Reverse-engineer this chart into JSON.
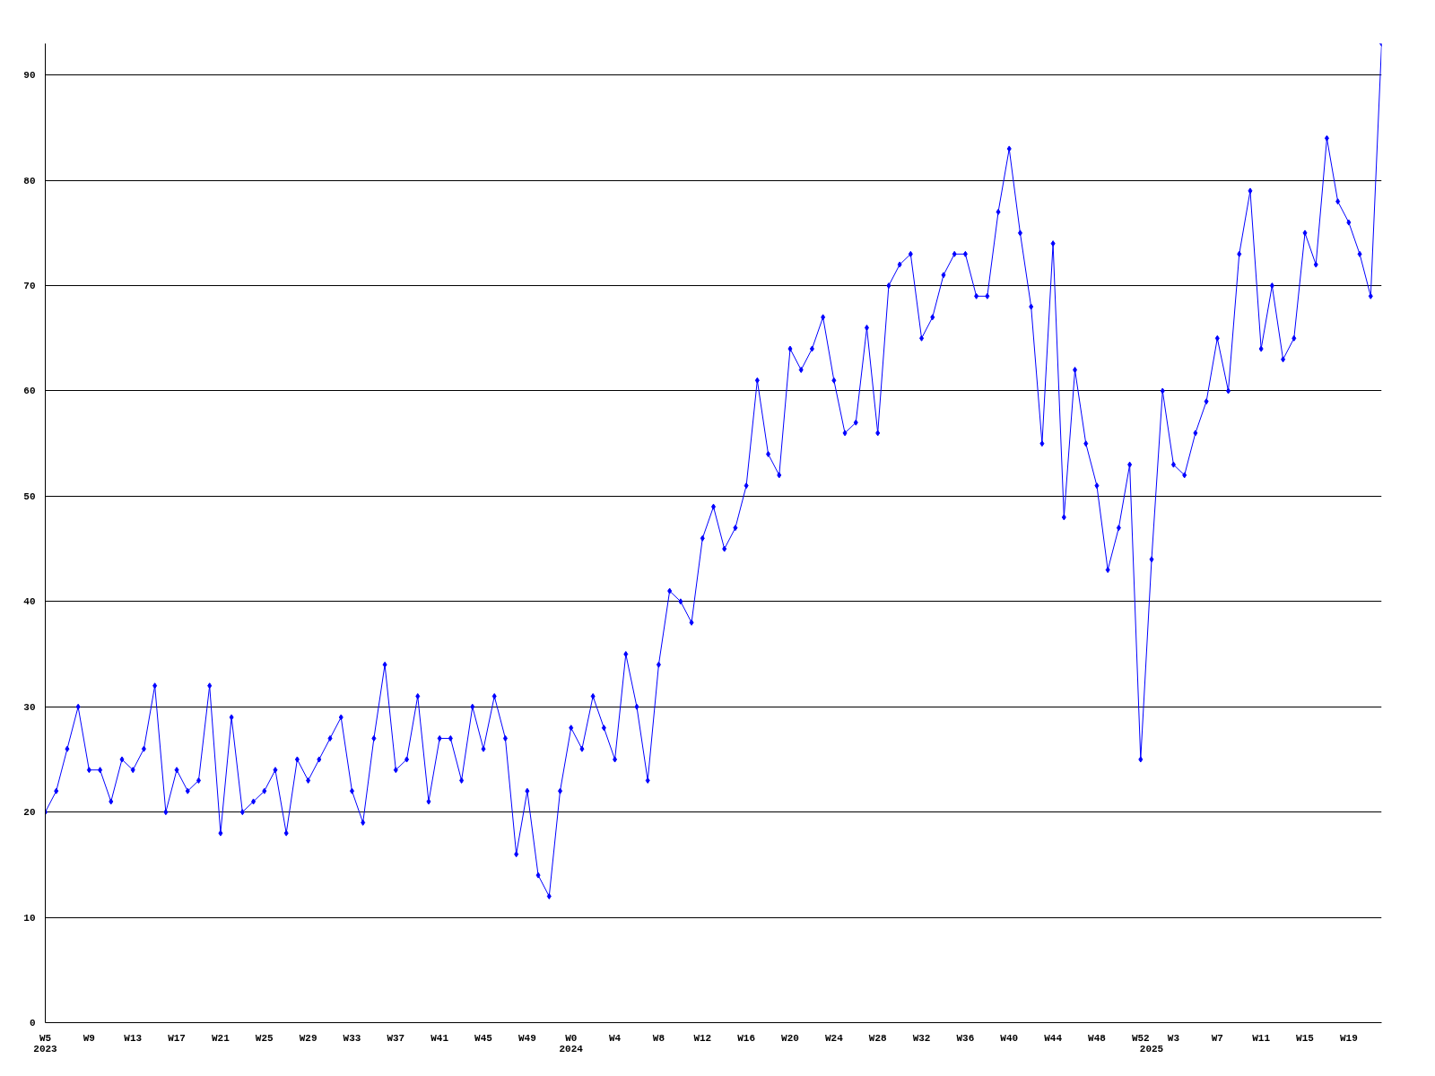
{
  "chart_data": {
    "type": "line",
    "categories": [
      "W5\n2023",
      null,
      null,
      null,
      "W9",
      null,
      null,
      null,
      "W13",
      null,
      null,
      null,
      "W17",
      null,
      null,
      null,
      "W21",
      null,
      null,
      null,
      "W25",
      null,
      null,
      null,
      "W29",
      null,
      null,
      null,
      "W33",
      null,
      null,
      null,
      "W37",
      null,
      null,
      null,
      "W41",
      null,
      null,
      null,
      "W45",
      null,
      null,
      null,
      "W49",
      null,
      null,
      null,
      "W0\n2024",
      null,
      null,
      null,
      "W4",
      null,
      null,
      null,
      "W8",
      null,
      null,
      null,
      "W12",
      null,
      null,
      null,
      "W16",
      null,
      null,
      null,
      "W20",
      null,
      null,
      null,
      "W24",
      null,
      null,
      null,
      "W28",
      null,
      null,
      null,
      "W32",
      null,
      null,
      null,
      "W36",
      null,
      null,
      null,
      "W40",
      null,
      null,
      null,
      "W44",
      null,
      null,
      null,
      "W48",
      null,
      null,
      null,
      "W52",
      "\n2025",
      null,
      "W3",
      null,
      null,
      null,
      "W7",
      null,
      null,
      null,
      "W11",
      null,
      null,
      null,
      "W15",
      null,
      null,
      null,
      "W19",
      null,
      null,
      null
    ],
    "series": [
      {
        "color": "#0000ff",
        "values": [
          20,
          22,
          26,
          30,
          24,
          24,
          21,
          25,
          24,
          26,
          32,
          20,
          24,
          22,
          23,
          32,
          18,
          29,
          20,
          21,
          22,
          24,
          18,
          25,
          23,
          25,
          27,
          29,
          22,
          19,
          27,
          34,
          24,
          25,
          31,
          21,
          27,
          27,
          23,
          30,
          26,
          31,
          27,
          16,
          22,
          14,
          12,
          22,
          28,
          26,
          31,
          28,
          25,
          35,
          30,
          23,
          34,
          41,
          40,
          38,
          46,
          49,
          45,
          47,
          51,
          61,
          54,
          52,
          64,
          62,
          64,
          67,
          61,
          56,
          57,
          66,
          56,
          70,
          72,
          73,
          65,
          67,
          71,
          73,
          73,
          69,
          69,
          77,
          83,
          75,
          68,
          55,
          74,
          48,
          62,
          55,
          51,
          43,
          47,
          53,
          25,
          44,
          60,
          53,
          52,
          56,
          59,
          65,
          60,
          73,
          79,
          64,
          70,
          63,
          65,
          75,
          72,
          84,
          78,
          76,
          73,
          69,
          93
        ]
      }
    ],
    "ylim": [
      0,
      93
    ],
    "yticks": [
      0,
      10,
      20,
      30,
      40,
      50,
      60,
      70,
      80,
      90
    ],
    "grid": "y",
    "marker": "diamond",
    "line_style": "solid"
  }
}
